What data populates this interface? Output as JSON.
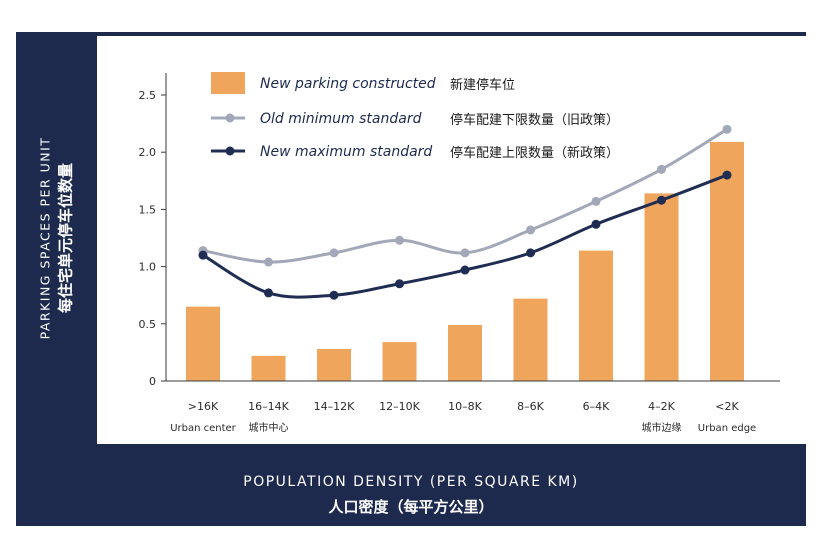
{
  "chart_data": {
    "type": "bar",
    "ylabel": "PARKING SPACES PER UNIT",
    "ylabel_zh": "每住宅单元停车位数量",
    "xlabel": "POPULATION DENSITY (PER SQUARE KM)",
    "xlabel_zh": "人口密度（每平方公里）",
    "categories": [
      ">16K",
      "16–14K",
      "14–12K",
      "12–10K",
      "10–8K",
      "8–6K",
      "6–4K",
      "4–2K",
      "<2K"
    ],
    "category_notes": [
      "Urban center",
      "城市中心",
      "",
      "",
      "",
      "",
      "",
      "城市边缘",
      "Urban edge"
    ],
    "ylim": [
      0,
      2.5
    ],
    "yticks": [
      "0",
      "0.5",
      "1.0",
      "1.5",
      "2.0",
      "2.5"
    ],
    "grid": false,
    "legend_position": "top-left",
    "series": [
      {
        "name": "New parking constructed",
        "name_zh": "新建停车位",
        "kind": "bar",
        "color": "#f0a55d",
        "values": [
          0.65,
          0.22,
          0.28,
          0.34,
          0.49,
          0.72,
          1.14,
          1.64,
          2.09
        ]
      },
      {
        "name": "Old minimum standard",
        "name_zh": "停车配建下限数量（旧政策）",
        "kind": "line",
        "color": "#a2a8b8",
        "values": [
          1.14,
          1.04,
          1.12,
          1.23,
          1.12,
          1.32,
          1.57,
          1.85,
          2.2
        ]
      },
      {
        "name": "New maximum standard",
        "name_zh": "停车配建上限数量（新政策）",
        "kind": "line",
        "color": "#1f2d52",
        "values": [
          1.1,
          0.77,
          0.75,
          0.85,
          0.97,
          1.12,
          1.37,
          1.58,
          1.8
        ]
      }
    ]
  }
}
